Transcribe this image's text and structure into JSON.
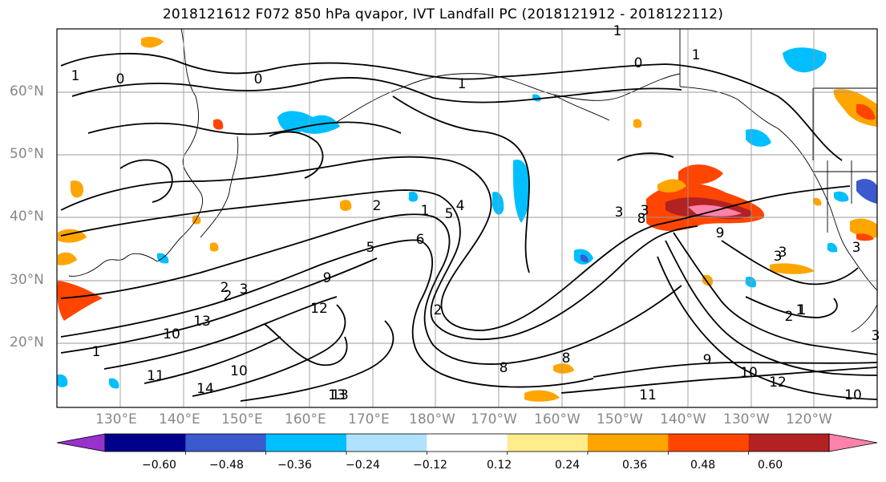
{
  "title": "2018121612 F072 850 hPa qvapor, IVT Landfall PC (2018121912 - 2018122112)",
  "lat_labels": [
    "60°N",
    "50°N",
    "40°N",
    "30°N",
    "20°N"
  ],
  "lon_labels": [
    "130°E",
    "140°E",
    "150°E",
    "160°E",
    "170°E",
    "180°W",
    "170°W",
    "160°W",
    "150°W",
    "140°W",
    "130°W",
    "120°W"
  ],
  "colorbar": {
    "colors": [
      "#9932cc",
      "#00008b",
      "#3a5acd",
      "#00bfff",
      "#b0e2ff",
      "#ffffff",
      "#ffec8b",
      "#ffa500",
      "#ff4500",
      "#b22222",
      "#ff82ab"
    ],
    "tick_labels": [
      "−0.60",
      "−0.48",
      "−0.36",
      "−0.24",
      "−0.12",
      "0.12",
      "0.24",
      "0.36",
      "0.48",
      "0.60"
    ]
  },
  "contour_labels": [
    "1",
    "0",
    "1",
    "1",
    "0",
    "1",
    "0",
    "2",
    "1",
    "4",
    "6",
    "5",
    "9",
    "2",
    "3",
    "2",
    "3",
    "8",
    "12",
    "10",
    "13",
    "11",
    "10",
    "14",
    "13",
    "9",
    "8",
    "2",
    "3",
    "3",
    "3",
    "1",
    "2",
    "8",
    "10",
    "9",
    "12",
    "11",
    "10",
    "13",
    "1",
    "1",
    "3",
    "3",
    "5"
  ]
}
